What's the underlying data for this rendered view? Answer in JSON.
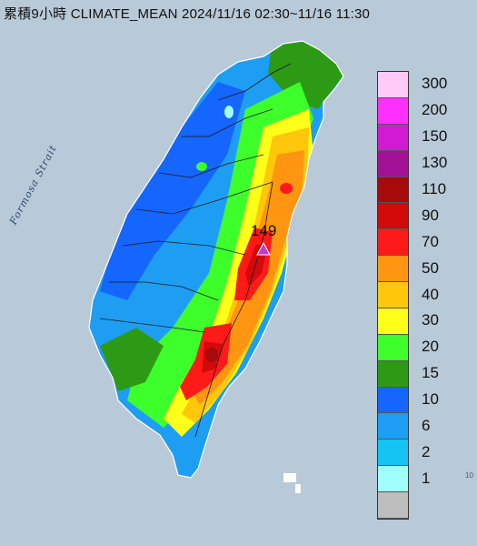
{
  "map_title": "累積9小時 CLIMATE_MEAN 2024/11/16 02:30~11/16 11:30",
  "sea_label": "Formosa Strait",
  "peak": {
    "value": "149",
    "marker_color": "#cc33cc"
  },
  "corner_label": "10",
  "legend": [
    {
      "label": "300",
      "color": "#ffcaf5"
    },
    {
      "label": "200",
      "color": "#ff30ff"
    },
    {
      "label": "150",
      "color": "#d21ad4"
    },
    {
      "label": "130",
      "color": "#a21096"
    },
    {
      "label": "110",
      "color": "#a60a0a"
    },
    {
      "label": "90",
      "color": "#d30a0a"
    },
    {
      "label": "70",
      "color": "#ff1a1a"
    },
    {
      "label": "50",
      "color": "#ff9511"
    },
    {
      "label": "40",
      "color": "#ffc70b"
    },
    {
      "label": "30",
      "color": "#ffff1a"
    },
    {
      "label": "20",
      "color": "#3dff2a"
    },
    {
      "label": "15",
      "color": "#2d9a15"
    },
    {
      "label": "10",
      "color": "#1565ff"
    },
    {
      "label": "6",
      "color": "#1e9ef2"
    },
    {
      "label": "2",
      "color": "#14c5f3"
    },
    {
      "label": "1",
      "color": "#a0fffb"
    },
    {
      "label": "",
      "color": "#bdbdbd"
    }
  ]
}
